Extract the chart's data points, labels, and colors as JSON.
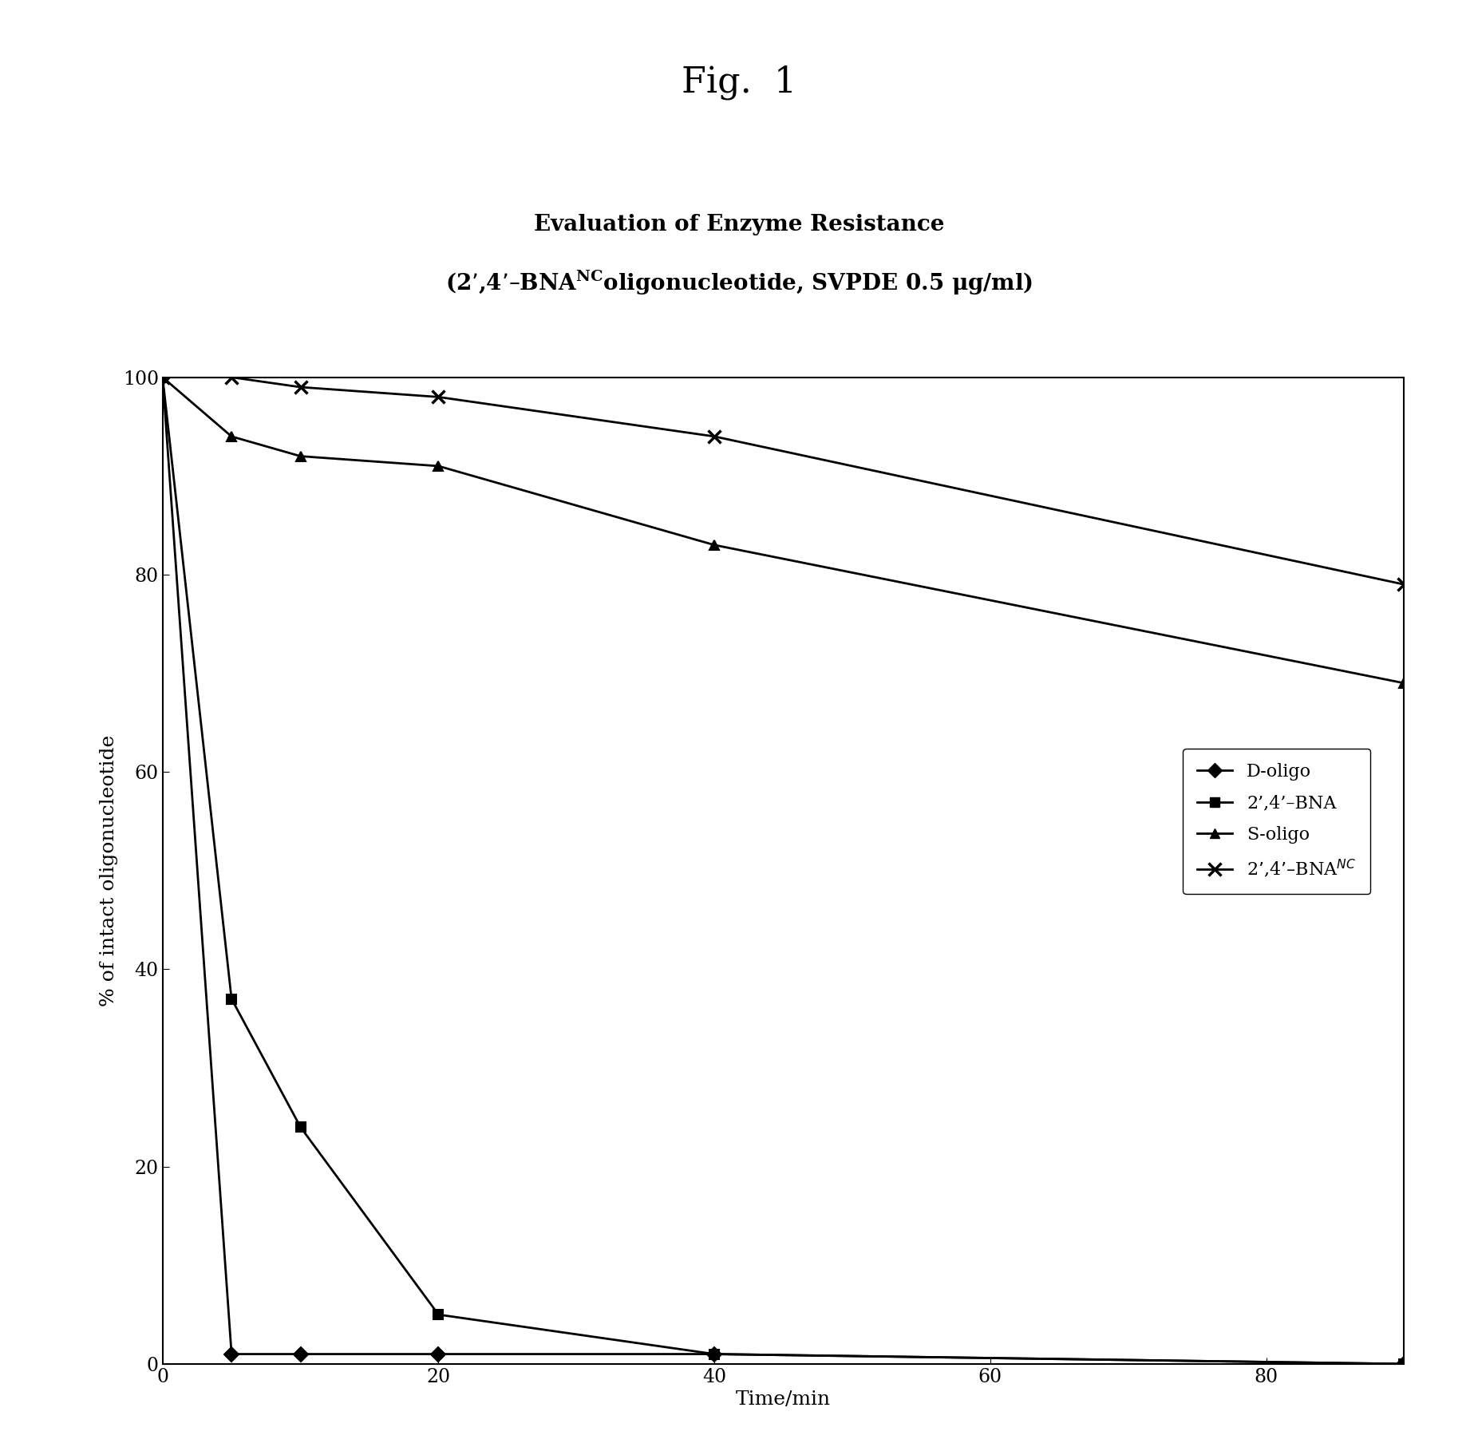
{
  "fig_title": "Fig.  1",
  "chart_title_line1": "Evaluation of Enzyme Resistance",
  "chart_title_line2_pre": "(2’,4’–BNA",
  "chart_title_nc": "NC",
  "chart_title_line2_post": "oligonucleotide, SVPDE 0.5 μg/ml)",
  "xlabel": "Time/min",
  "ylabel": "% of intact oligonucleotide",
  "xlim": [
    0,
    90
  ],
  "ylim": [
    0,
    100
  ],
  "xticks": [
    0,
    20,
    40,
    60,
    80
  ],
  "yticks": [
    0,
    20,
    40,
    60,
    80,
    100
  ],
  "series": [
    {
      "label": "D-oligo",
      "x": [
        0,
        5,
        10,
        20,
        40,
        90
      ],
      "y": [
        100,
        1,
        1,
        1,
        1,
        0
      ],
      "marker": "D",
      "markersize": 9,
      "color": "#000000",
      "linewidth": 2.0
    },
    {
      "label": "2’,4’–BNA",
      "x": [
        0,
        5,
        10,
        20,
        40,
        90
      ],
      "y": [
        100,
        37,
        24,
        5,
        1,
        0
      ],
      "marker": "s",
      "markersize": 9,
      "color": "#000000",
      "linewidth": 2.0
    },
    {
      "label": "S-oligo",
      "x": [
        0,
        5,
        10,
        20,
        40,
        90
      ],
      "y": [
        100,
        94,
        92,
        91,
        83,
        69
      ],
      "marker": "^",
      "markersize": 9,
      "color": "#000000",
      "linewidth": 2.0
    },
    {
      "label_base": "2’,4’–BNA",
      "label_nc": "NC",
      "x": [
        0,
        5,
        10,
        20,
        40,
        90
      ],
      "y": [
        100,
        100,
        99,
        98,
        94,
        79
      ],
      "marker": "x",
      "markersize": 11,
      "color": "#000000",
      "linewidth": 2.0
    }
  ],
  "background_color": "#ffffff",
  "fig_title_fontsize": 32,
  "chart_title_fontsize": 20,
  "axis_label_fontsize": 18,
  "tick_fontsize": 17,
  "legend_fontsize": 16
}
